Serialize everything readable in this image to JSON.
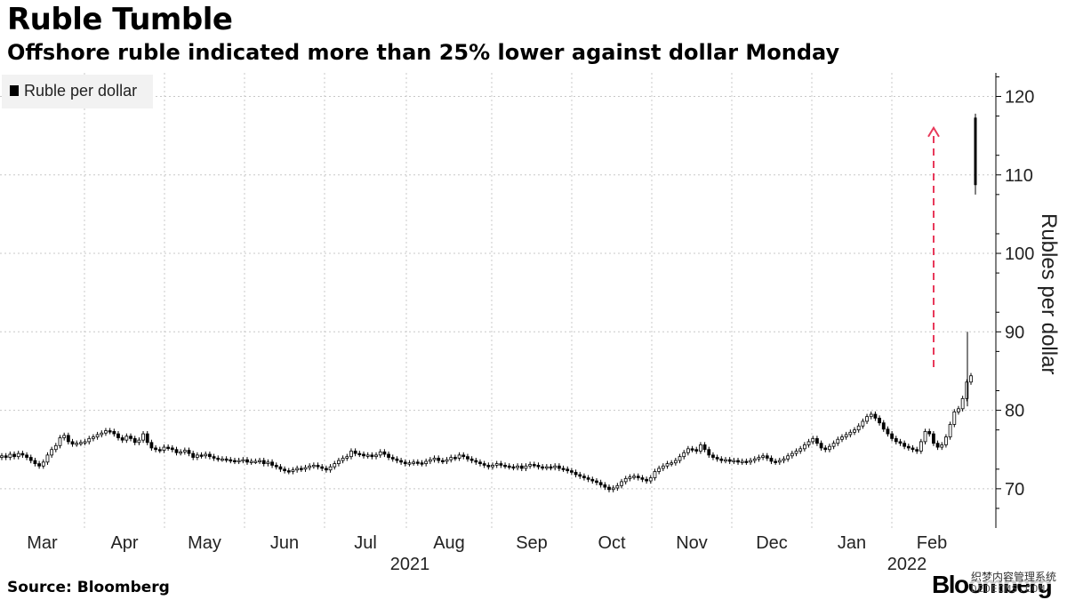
{
  "header": {
    "title": "Ruble Tumble",
    "subtitle": "Offshore ruble indicated more than 25% lower against dollar Monday"
  },
  "footer": {
    "source": "Source: Bloomberg",
    "logo": "Bloomberg",
    "watermark": "织梦内容管理系统",
    "watermark_url": "DEDECMS.COM"
  },
  "colors": {
    "candle": "#000000",
    "grid": "#c8c8c8",
    "arrow": "#e8395a",
    "legend_bg": "#f2f2f2"
  },
  "chart_data": {
    "type": "candlestick",
    "title": "Ruble Tumble",
    "subtitle": "Offshore ruble indicated more than 25% lower against dollar Monday",
    "ylabel": "Rubles per dollar",
    "ylim": [
      65,
      123
    ],
    "yticks": [
      70,
      80,
      90,
      100,
      110,
      120
    ],
    "y_axis_side": "right",
    "grid": true,
    "legend": {
      "position": "top-left",
      "entries": [
        "Ruble per dollar"
      ]
    },
    "x_months": [
      "Mar",
      "Apr",
      "May",
      "Jun",
      "Jul",
      "Aug",
      "Sep",
      "Oct",
      "Nov",
      "Dec",
      "Jan",
      "Feb"
    ],
    "x_years": [
      {
        "label": "2021",
        "under": "Jun–Aug"
      },
      {
        "label": "2022",
        "under": "Jan–Feb"
      }
    ],
    "series_name": "Ruble per dollar",
    "closes": [
      74.2,
      74.0,
      74.4,
      74.1,
      74.5,
      74.3,
      74.0,
      73.6,
      73.2,
      72.9,
      73.4,
      74.3,
      75.0,
      75.5,
      76.5,
      76.8,
      76.0,
      75.7,
      75.8,
      75.9,
      76.0,
      76.4,
      76.6,
      76.9,
      77.1,
      77.4,
      77.3,
      77.0,
      76.5,
      76.2,
      76.7,
      76.4,
      75.9,
      76.2,
      77.0,
      75.9,
      75.2,
      75.0,
      74.9,
      75.3,
      75.2,
      75.0,
      74.6,
      74.7,
      74.9,
      74.5,
      74.0,
      74.3,
      74.2,
      74.4,
      74.1,
      73.9,
      73.8,
      73.8,
      73.7,
      73.6,
      73.5,
      73.6,
      73.7,
      73.4,
      73.5,
      73.5,
      73.6,
      73.2,
      73.4,
      73.0,
      72.8,
      72.5,
      72.3,
      72.2,
      72.4,
      72.6,
      72.5,
      72.7,
      72.9,
      73.0,
      72.8,
      72.6,
      72.4,
      72.8,
      73.2,
      73.6,
      73.9,
      74.1,
      74.8,
      74.5,
      74.4,
      74.2,
      74.3,
      74.1,
      74.3,
      74.7,
      74.4,
      74.0,
      73.8,
      73.6,
      73.4,
      73.2,
      73.3,
      73.4,
      73.3,
      73.2,
      73.5,
      73.7,
      73.9,
      73.6,
      73.5,
      73.7,
      74.0,
      73.9,
      74.3,
      74.1,
      73.8,
      73.6,
      73.4,
      73.2,
      73.0,
      72.8,
      73.0,
      73.2,
      73.0,
      72.9,
      72.8,
      72.7,
      72.9,
      72.6,
      72.9,
      73.1,
      73.0,
      72.8,
      72.7,
      72.8,
      72.7,
      72.9,
      72.6,
      72.5,
      72.3,
      72.1,
      71.8,
      71.6,
      71.4,
      71.2,
      71.0,
      70.8,
      70.5,
      70.2,
      69.9,
      70.1,
      70.4,
      70.9,
      71.3,
      71.5,
      71.6,
      71.4,
      71.2,
      71.0,
      71.4,
      72.2,
      72.6,
      72.9,
      73.2,
      73.3,
      73.6,
      74.1,
      74.6,
      75.1,
      75.0,
      74.8,
      75.6,
      75.0,
      74.3,
      74.0,
      73.8,
      73.6,
      73.7,
      73.5,
      73.6,
      73.4,
      73.5,
      73.4,
      73.6,
      73.8,
      74.0,
      74.2,
      73.9,
      73.5,
      73.4,
      73.6,
      73.8,
      74.2,
      74.5,
      74.8,
      75.1,
      75.6,
      76.0,
      76.4,
      75.8,
      75.2,
      75.0,
      75.4,
      75.8,
      76.3,
      76.6,
      76.9,
      77.2,
      77.5,
      78.0,
      78.6,
      79.2,
      79.5,
      79.0,
      78.4,
      77.6,
      77.0,
      76.4,
      76.0,
      75.8,
      75.4,
      75.2,
      75.0,
      74.8,
      76.0,
      77.3,
      77.0,
      75.8,
      75.3,
      75.6,
      76.6,
      78.2,
      79.8,
      80.2,
      81.5,
      83.6,
      84.4,
      108.5,
      117.5
    ],
    "arrow_annotation": {
      "from_value": 85.5,
      "to_value": 116
    }
  }
}
